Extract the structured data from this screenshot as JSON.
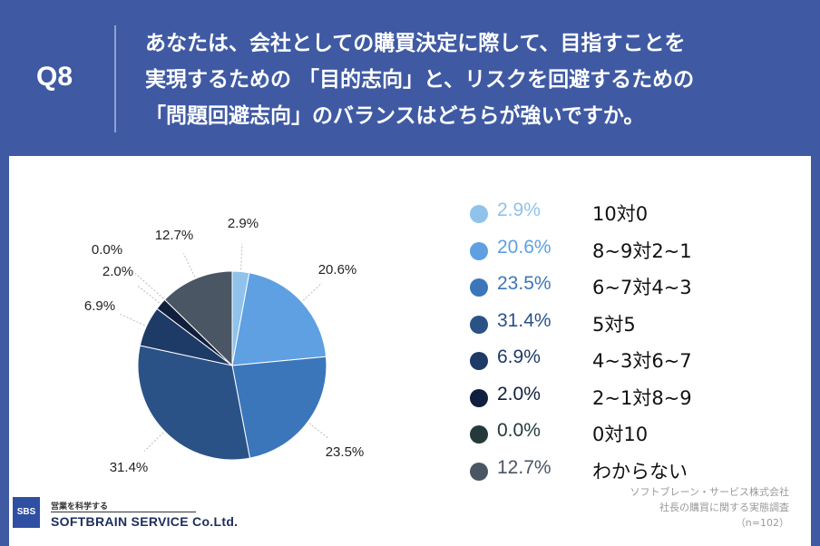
{
  "header": {
    "q_label": "Q8",
    "question": "あなたは、会社としての購買決定に際して、目指すことを\n実現するための 「目的志向」と、リスクを回避するための\n「問題回避志向」のバランスはどちらが強いですか。"
  },
  "chart_data": {
    "type": "pie",
    "title": "",
    "slices": [
      {
        "label": "10対0",
        "value": 2.9,
        "pct_text": "2.9%",
        "color": "#8fc3ec"
      },
      {
        "label": "8~9対2~1",
        "value": 20.6,
        "pct_text": "20.6%",
        "color": "#5ea0e2"
      },
      {
        "label": "6~7対4~3",
        "value": 23.5,
        "pct_text": "23.5%",
        "color": "#3c76ba"
      },
      {
        "label": "5対5",
        "value": 31.4,
        "pct_text": "31.4%",
        "color": "#2a5287"
      },
      {
        "label": "4~3対6~7",
        "value": 6.9,
        "pct_text": "6.9%",
        "color": "#1e3a66"
      },
      {
        "label": "2~1対8~9",
        "value": 2.0,
        "pct_text": "2.0%",
        "color": "#101f3d"
      },
      {
        "label": "0対10",
        "value": 0.0,
        "pct_text": "0.0%",
        "color": "#24393a"
      },
      {
        "label": "わからない",
        "value": 12.7,
        "pct_text": "12.7%",
        "color": "#4b5664"
      }
    ],
    "legend_placement": "right"
  },
  "source": {
    "line1": "ソフトブレーン・サービス株式会社",
    "line2": "社長の購買に関する実態調査",
    "line3": "（n=102）"
  },
  "logo": {
    "mark": "SBS",
    "tagline": "営業を科学する",
    "name": "SOFTBRAIN SERVICE Co.Ltd."
  }
}
